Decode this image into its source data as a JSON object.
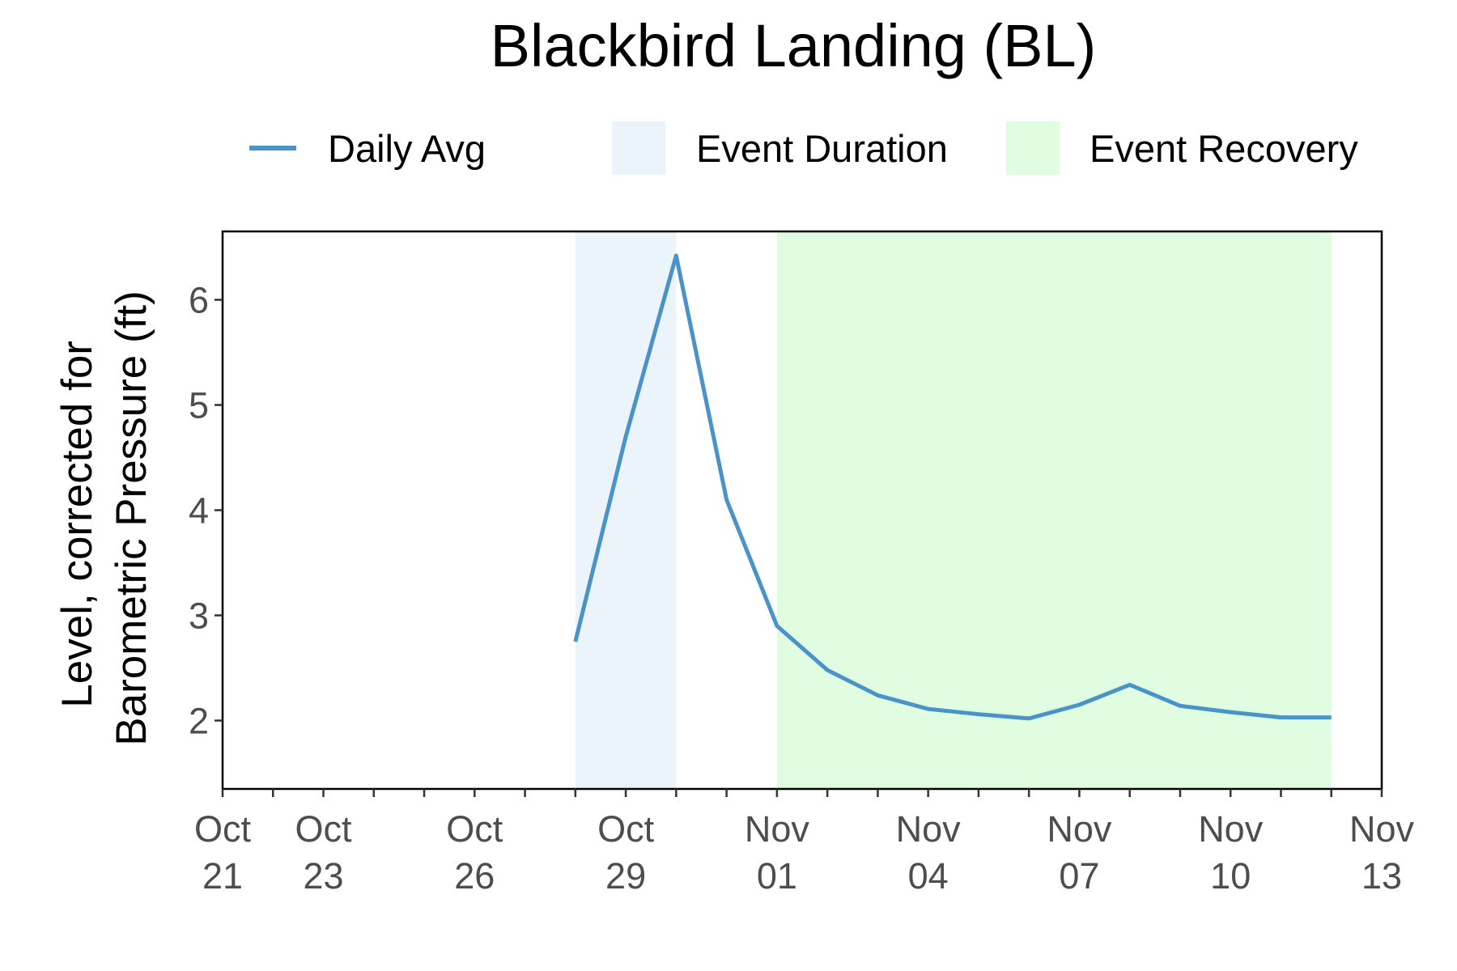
{
  "chart_data": {
    "type": "line",
    "title": "Blackbird Landing (BL)",
    "ylabel_lines": [
      "Level, corrected for",
      "Barometric Pressure (ft)"
    ],
    "xlabel": "",
    "x_axis_type": "date",
    "xlim": [
      "2023-10-21",
      "2023-11-13"
    ],
    "ylim": [
      1.35,
      6.65
    ],
    "y_ticks": [
      2,
      3,
      4,
      5,
      6
    ],
    "x_ticks_major": [
      {
        "date": "2023-10-21",
        "label": [
          "Oct",
          "21"
        ]
      },
      {
        "date": "2023-10-23",
        "label": [
          "Oct",
          "23"
        ]
      },
      {
        "date": "2023-10-26",
        "label": [
          "Oct",
          "26"
        ]
      },
      {
        "date": "2023-10-29",
        "label": [
          "Oct",
          "29"
        ]
      },
      {
        "date": "2023-11-01",
        "label": [
          "Nov",
          "01"
        ]
      },
      {
        "date": "2023-11-04",
        "label": [
          "Nov",
          "04"
        ]
      },
      {
        "date": "2023-11-07",
        "label": [
          "Nov",
          "07"
        ]
      },
      {
        "date": "2023-11-10",
        "label": [
          "Nov",
          "10"
        ]
      },
      {
        "date": "2023-11-13",
        "label": [
          "Nov",
          "13"
        ]
      }
    ],
    "x_ticks_minor": [
      "2023-10-22",
      "2023-10-24",
      "2023-10-25",
      "2023-10-27",
      "2023-10-28",
      "2023-10-30",
      "2023-10-31",
      "2023-11-02",
      "2023-11-03",
      "2023-11-05",
      "2023-11-06",
      "2023-11-08",
      "2023-11-09",
      "2023-11-11",
      "2023-11-12"
    ],
    "series": [
      {
        "name": "Daily Avg",
        "color": "#4a93c9",
        "x": [
          "2023-10-28",
          "2023-10-29",
          "2023-10-30",
          "2023-10-31",
          "2023-11-01",
          "2023-11-02",
          "2023-11-03",
          "2023-11-04",
          "2023-11-05",
          "2023-11-06",
          "2023-11-07",
          "2023-11-08",
          "2023-11-09",
          "2023-11-10",
          "2023-11-11",
          "2023-11-12"
        ],
        "y": [
          2.75,
          4.7,
          6.42,
          4.1,
          2.9,
          2.48,
          2.24,
          2.11,
          2.06,
          2.02,
          2.15,
          2.34,
          2.14,
          2.08,
          2.03,
          2.03
        ]
      }
    ],
    "shaded_regions": [
      {
        "name": "Event Duration",
        "start": "2023-10-28",
        "end": "2023-10-30",
        "color": "#ebf3fb"
      },
      {
        "name": "Event Recovery",
        "start": "2023-11-01",
        "end": "2023-11-12",
        "color": "#e1fde1"
      }
    ],
    "legend": {
      "position": "top",
      "items": [
        {
          "label": "Daily Avg",
          "kind": "line",
          "color": "#4a93c9"
        },
        {
          "label": "Event Duration",
          "kind": "fill",
          "color": "#ebf3fb"
        },
        {
          "label": "Event Recovery",
          "kind": "fill",
          "color": "#e1fde1"
        }
      ]
    },
    "grid": false
  }
}
